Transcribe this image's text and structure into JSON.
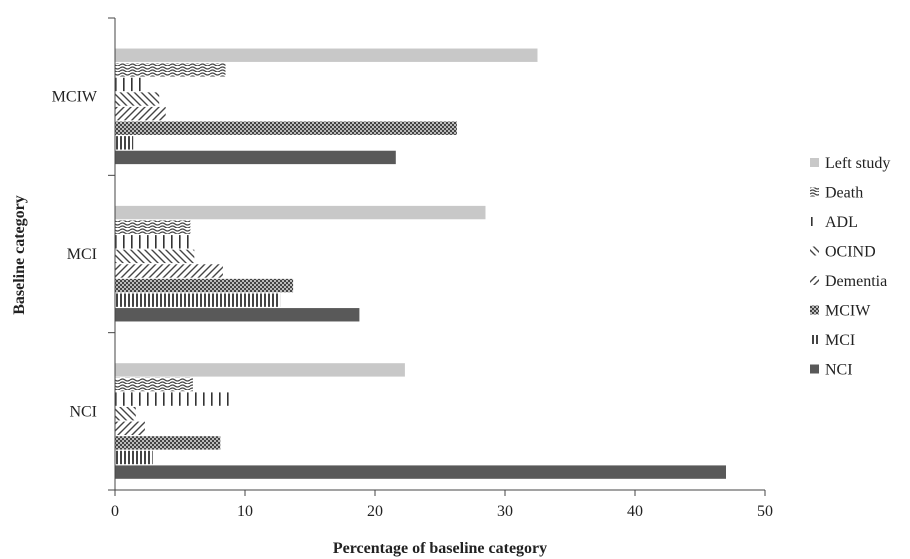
{
  "chart_data": {
    "type": "bar",
    "orientation": "horizontal",
    "title": "",
    "xlabel": "Percentage of baseline category",
    "ylabel": "Baseline category",
    "xlim": [
      0,
      50
    ],
    "xticks": [
      "0",
      "10",
      "20",
      "30",
      "40",
      "50"
    ],
    "grid": false,
    "legend_position": "right",
    "categories": [
      "NCI",
      "MCI",
      "MCIW"
    ],
    "series": [
      {
        "name": "NCI",
        "values": [
          47.0,
          18.8,
          21.6
        ],
        "color": "#595959",
        "pattern": "solid"
      },
      {
        "name": "MCI",
        "values": [
          2.9,
          12.7,
          1.4
        ],
        "color": "#555555",
        "pattern": "vertical"
      },
      {
        "name": "MCIW",
        "values": [
          8.1,
          13.7,
          26.3
        ],
        "color": "#555555",
        "pattern": "crosshatch"
      },
      {
        "name": "Dementia",
        "values": [
          2.3,
          8.3,
          3.9
        ],
        "color": "#555555",
        "pattern": "diagonal-right"
      },
      {
        "name": "OCIND",
        "values": [
          1.6,
          6.1,
          3.4
        ],
        "color": "#555555",
        "pattern": "diagonal-left"
      },
      {
        "name": "ADL",
        "values": [
          9.0,
          6.1,
          2.3
        ],
        "color": "#333333",
        "pattern": "cross"
      },
      {
        "name": "Death",
        "values": [
          6.0,
          5.8,
          8.5
        ],
        "color": "#555555",
        "pattern": "wave"
      },
      {
        "name": "Left study",
        "values": [
          22.3,
          28.5,
          32.5
        ],
        "color": "#c8c8c8",
        "pattern": "solid"
      }
    ]
  }
}
